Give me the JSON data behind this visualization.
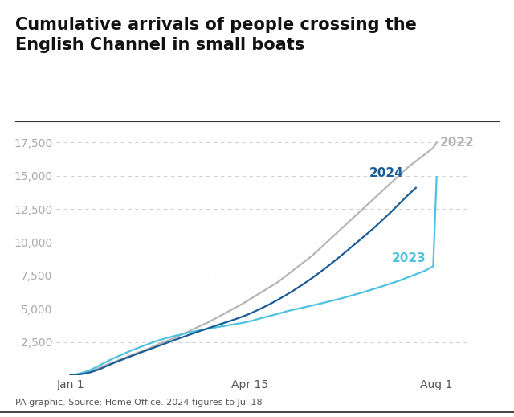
{
  "title": "Cumulative arrivals of people crossing the\nEnglish Channel in small boats",
  "title_fontsize": 15,
  "title_fontweight": "bold",
  "caption": "PA graphic. Source: Home Office. 2024 figures to Jul 18",
  "xlabel_ticks": [
    "Jan 1",
    "Apr 15",
    "Aug 1"
  ],
  "xlabel_tick_days": [
    0,
    104,
    212
  ],
  "ylim": [
    0,
    18500
  ],
  "yticks": [
    2500,
    5000,
    7500,
    10000,
    12500,
    15000,
    17500
  ],
  "background_color": "#ffffff",
  "grid_color": "#cccccc",
  "color_2022": "#b5b5b5",
  "color_2023": "#4dc3e0",
  "color_2024": "#1a5c96",
  "label_2022": "2022",
  "label_2023": "2023",
  "label_2024": "2024",
  "label_fontsize": 11,
  "label_fontweight": "bold",
  "line_width": 1.6,
  "data_2022_days": [
    0,
    3,
    6,
    9,
    12,
    15,
    18,
    21,
    25,
    30,
    35,
    40,
    45,
    50,
    55,
    60,
    65,
    70,
    75,
    80,
    85,
    90,
    95,
    100,
    105,
    110,
    115,
    120,
    125,
    130,
    135,
    140,
    145,
    150,
    155,
    160,
    165,
    170,
    175,
    180,
    185,
    190,
    195,
    200,
    205,
    210,
    212
  ],
  "data_2022_vals": [
    0,
    50,
    120,
    200,
    320,
    480,
    620,
    800,
    1000,
    1250,
    1500,
    1750,
    2000,
    2280,
    2550,
    2800,
    3100,
    3400,
    3700,
    4000,
    4350,
    4700,
    5050,
    5400,
    5800,
    6200,
    6600,
    7000,
    7500,
    8000,
    8500,
    9000,
    9600,
    10200,
    10800,
    11400,
    12000,
    12600,
    13200,
    13800,
    14400,
    15000,
    15600,
    16100,
    16600,
    17100,
    17500
  ],
  "data_2023_days": [
    0,
    3,
    6,
    9,
    12,
    15,
    18,
    21,
    25,
    30,
    35,
    40,
    45,
    50,
    55,
    60,
    65,
    70,
    75,
    80,
    85,
    90,
    95,
    100,
    105,
    110,
    115,
    120,
    125,
    130,
    135,
    140,
    145,
    150,
    155,
    160,
    165,
    170,
    175,
    180,
    185,
    190,
    195,
    200,
    205,
    210,
    212
  ],
  "data_2023_vals": [
    0,
    70,
    160,
    280,
    430,
    620,
    820,
    1030,
    1280,
    1570,
    1850,
    2100,
    2350,
    2580,
    2780,
    2950,
    3100,
    3250,
    3380,
    3500,
    3620,
    3730,
    3840,
    3950,
    4100,
    4280,
    4450,
    4620,
    4800,
    4960,
    5100,
    5250,
    5400,
    5560,
    5720,
    5900,
    6080,
    6270,
    6470,
    6670,
    6880,
    7100,
    7350,
    7600,
    7850,
    8200,
    14900
  ],
  "data_2024_days": [
    0,
    3,
    6,
    9,
    12,
    15,
    18,
    21,
    25,
    30,
    35,
    40,
    45,
    50,
    55,
    60,
    65,
    70,
    75,
    80,
    85,
    90,
    95,
    100,
    105,
    110,
    115,
    120,
    125,
    130,
    135,
    140,
    145,
    150,
    155,
    160,
    165,
    170,
    175,
    180,
    185,
    190,
    195,
    200
  ],
  "data_2024_vals": [
    0,
    30,
    80,
    150,
    240,
    370,
    520,
    700,
    920,
    1180,
    1430,
    1680,
    1920,
    2160,
    2400,
    2640,
    2870,
    3100,
    3330,
    3550,
    3770,
    3980,
    4200,
    4430,
    4700,
    5000,
    5320,
    5670,
    6050,
    6450,
    6870,
    7320,
    7800,
    8300,
    8820,
    9350,
    9900,
    10450,
    11000,
    11600,
    12200,
    12850,
    13500,
    14100
  ],
  "label_2022_day": 213,
  "label_2022_val": 17500,
  "label_2023_day": 185,
  "label_2023_val": 8800,
  "label_2024_day": 193,
  "label_2024_val": 14700
}
